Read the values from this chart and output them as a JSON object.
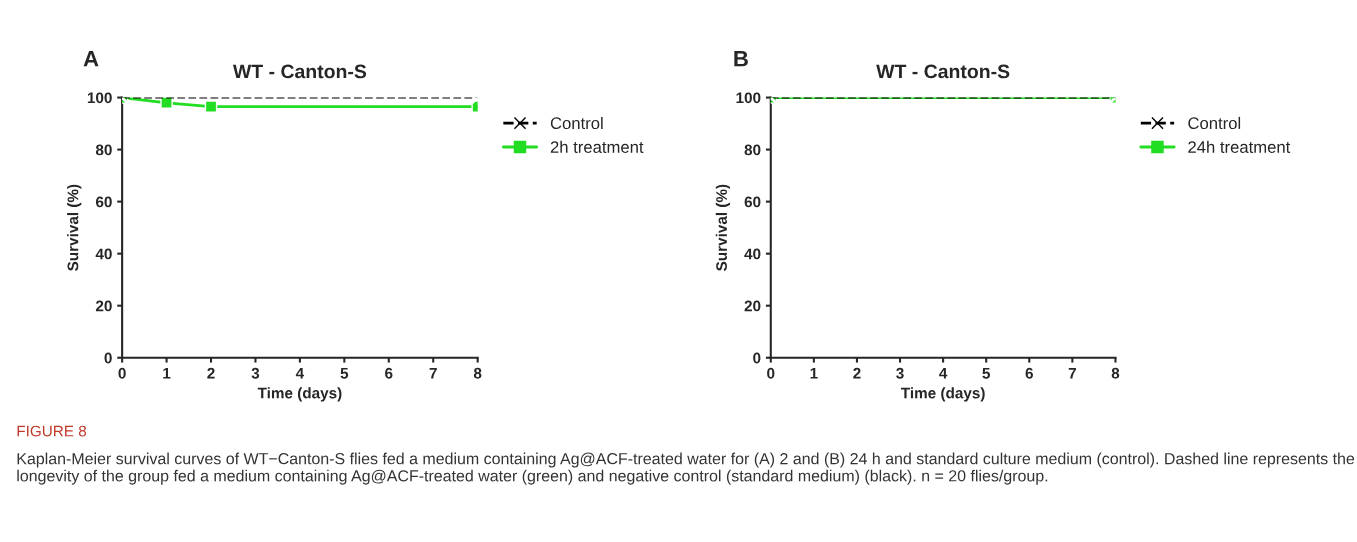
{
  "chart_data": [
    {
      "type": "line",
      "title": "WT - Canton-S",
      "xlabel": "Time (days)",
      "ylabel": "Survival (%)",
      "annotations": [
        "A",
        "FIGURE 8",
        "Kaplan-Meier survival curves of WT−Canton-S flies fed a medium containing Ag@ACF-treated water for (A) 2 and (B) 24 h and standard culture medium (control). Dashed line represents the longevity of the group fed a medium containing Ag@ACF-treated water (green) and negative control (standard medium) (black). n = 20 flies/group."
      ],
      "xlim": [
        0,
        8
      ],
      "ylim": [
        0,
        100
      ],
      "xticks": [
        0,
        1,
        2,
        3,
        4,
        5,
        6,
        7,
        8
      ],
      "yticks": [
        0,
        20,
        40,
        60,
        80,
        100
      ],
      "grid": false,
      "legend": "right",
      "series": [
        {
          "name": "Control",
          "color": "#000000",
          "x": [
            0,
            8
          ],
          "values": [
            100,
            100
          ],
          "marker": "cross",
          "line_style": "dashed"
        },
        {
          "name": "2h treatment",
          "color": "#22dd22",
          "x": [
            0,
            1,
            2,
            8
          ],
          "values": [
            100,
            98,
            96.5,
            96.5
          ],
          "marker": "square",
          "line_style": "solid"
        }
      ]
    },
    {
      "type": "line",
      "title": "WT - Canton-S",
      "xlabel": "Time (days)",
      "ylabel": "Survival (%)",
      "annotations": [
        "B"
      ],
      "xlim": [
        0,
        8
      ],
      "ylim": [
        0,
        100
      ],
      "xticks": [
        0,
        1,
        2,
        3,
        4,
        5,
        6,
        7,
        8
      ],
      "yticks": [
        0,
        20,
        40,
        60,
        80,
        100
      ],
      "grid": false,
      "legend": "right",
      "series": [
        {
          "name": "Control",
          "color": "#000000",
          "x": [
            0,
            8
          ],
          "values": [
            100,
            100
          ],
          "marker": "cross",
          "line_style": "dashed"
        },
        {
          "name": "24h treatment",
          "color": "#22dd22",
          "x": [
            0,
            8
          ],
          "values": [
            100,
            100
          ],
          "marker": "square",
          "line_style": "solid"
        }
      ]
    }
  ]
}
